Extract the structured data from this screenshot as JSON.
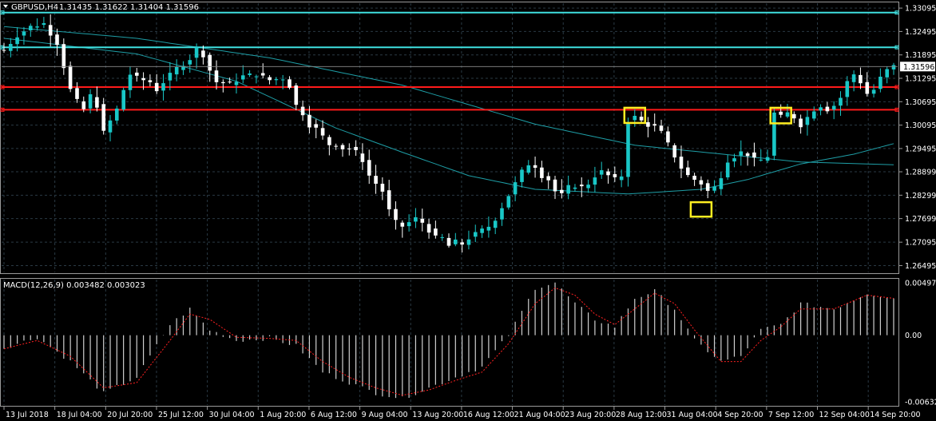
{
  "window": {
    "symbol_label": "GBPUSD,H4",
    "ohlc_label": "1.31435 1.31622 1.31404 1.31596",
    "indicator_label": "MACD(12,26,9) 0.003482 0.003023"
  },
  "colors": {
    "background": "#000000",
    "grid": "#2a3a44",
    "bull_candle": "#19c7c7",
    "bear_candle": "#ffffff",
    "hline_cyan": "#3fe0e0",
    "hline_red": "#ff1a1a",
    "ma_line": "#1e9ea6",
    "highlight_box": "#ffee22",
    "macd_hist": "#d0d0d0",
    "macd_signal": "#ff2020"
  },
  "price_axis": {
    "ticks": [
      "1.33095",
      "1.32495",
      "1.31895",
      "1.31295",
      "1.30695",
      "1.30095",
      "1.29495",
      "1.28899",
      "1.28299",
      "1.27699",
      "1.27095",
      "1.26495"
    ],
    "current_price": "1.31596"
  },
  "macd_axis": {
    "ticks": [
      "0.004977",
      "0.00",
      "-0.006325"
    ]
  },
  "time_axis": {
    "ticks": [
      "13 Jul 2018",
      "18 Jul 04:00",
      "20 Jul 20:00",
      "25 Jul 12:00",
      "30 Jul 04:00",
      "1 Aug 20:00",
      "6 Aug 12:00",
      "9 Aug 04:00",
      "13 Aug 20:00",
      "16 Aug 12:00",
      "21 Aug 04:00",
      "23 Aug 20:00",
      "28 Aug 12:00",
      "31 Aug 04:00",
      "4 Sep 20:00",
      "7 Sep 12:00",
      "12 Sep 04:00",
      "14 Sep 20:00"
    ]
  },
  "chart_data": {
    "type": "candlestick",
    "symbol": "GBPUSD",
    "timeframe": "H4",
    "ylim": [
      1.2632,
      1.3322
    ],
    "horizontal_lines": [
      {
        "price": 1.3298,
        "color": "cyan"
      },
      {
        "price": 1.3209,
        "color": "cyan"
      },
      {
        "price": 1.3107,
        "color": "red"
      },
      {
        "price": 1.3049,
        "color": "red"
      }
    ],
    "price_path": [
      [
        0,
        1.3202
      ],
      [
        2,
        1.324
      ],
      [
        4,
        1.3262
      ],
      [
        6,
        1.327
      ],
      [
        8,
        1.322
      ],
      [
        9,
        1.316
      ],
      [
        10,
        1.31
      ],
      [
        11,
        1.307
      ],
      [
        12,
        1.305
      ],
      [
        13,
        1.3085
      ],
      [
        14,
        1.306
      ],
      [
        15,
        1.299
      ],
      [
        16,
        1.302
      ],
      [
        17,
        1.305
      ],
      [
        18,
        1.31
      ],
      [
        19,
        1.314
      ],
      [
        20,
        1.313
      ],
      [
        22,
        1.312
      ],
      [
        23,
        1.31
      ],
      [
        24,
        1.312
      ],
      [
        26,
        1.3155
      ],
      [
        28,
        1.318
      ],
      [
        29,
        1.3205
      ],
      [
        30,
        1.319
      ],
      [
        31,
        1.315
      ],
      [
        32,
        1.312
      ],
      [
        34,
        1.3115
      ],
      [
        36,
        1.3135
      ],
      [
        38,
        1.314
      ],
      [
        40,
        1.3125
      ],
      [
        42,
        1.313
      ],
      [
        43,
        1.311
      ],
      [
        44,
        1.306
      ],
      [
        45,
        1.304
      ],
      [
        46,
        1.301
      ],
      [
        47,
        1.3
      ],
      [
        48,
        1.298
      ],
      [
        49,
        1.296
      ],
      [
        50,
        1.296
      ],
      [
        51,
        1.295
      ],
      [
        52,
        1.295
      ],
      [
        53,
        1.294
      ],
      [
        54,
        1.292
      ],
      [
        55,
        1.288
      ],
      [
        56,
        1.286
      ],
      [
        57,
        1.284
      ],
      [
        58,
        1.279
      ],
      [
        59,
        1.276
      ],
      [
        60,
        1.275
      ],
      [
        61,
        1.276
      ],
      [
        62,
        1.277
      ],
      [
        63,
        1.276
      ],
      [
        64,
        1.274
      ],
      [
        65,
        1.272
      ],
      [
        66,
        1.272
      ],
      [
        67,
        1.27
      ],
      [
        68,
        1.271
      ],
      [
        69,
        1.2705
      ],
      [
        70,
        1.272
      ],
      [
        71,
        1.273
      ],
      [
        72,
        1.274
      ],
      [
        73,
        1.275
      ],
      [
        74,
        1.277
      ],
      [
        75,
        1.28
      ],
      [
        76,
        1.283
      ],
      [
        77,
        1.286
      ],
      [
        78,
        1.289
      ],
      [
        79,
        1.291
      ],
      [
        80,
        1.2905
      ],
      [
        81,
        1.288
      ],
      [
        82,
        1.287
      ],
      [
        83,
        1.284
      ],
      [
        84,
        1.283
      ],
      [
        85,
        1.285
      ],
      [
        86,
        1.2855
      ],
      [
        87,
        1.285
      ],
      [
        88,
        1.286
      ],
      [
        89,
        1.288
      ],
      [
        90,
        1.289
      ],
      [
        91,
        1.288
      ],
      [
        92,
        1.287
      ],
      [
        93,
        1.288
      ],
      [
        94,
        1.302
      ],
      [
        95,
        1.303
      ],
      [
        96,
        1.302
      ],
      [
        97,
        1.301
      ],
      [
        98,
        1.3005
      ],
      [
        99,
        1.299
      ],
      [
        100,
        1.296
      ],
      [
        101,
        1.293
      ],
      [
        102,
        1.29
      ],
      [
        103,
        1.288
      ],
      [
        104,
        1.287
      ],
      [
        105,
        1.286
      ],
      [
        106,
        1.284
      ],
      [
        107,
        1.285
      ],
      [
        108,
        1.288
      ],
      [
        109,
        1.292
      ],
      [
        110,
        1.293
      ],
      [
        111,
        1.294
      ],
      [
        112,
        1.2935
      ],
      [
        113,
        1.292
      ],
      [
        114,
        1.292
      ],
      [
        115,
        1.293
      ],
      [
        116,
        1.304
      ],
      [
        117,
        1.303
      ],
      [
        118,
        1.304
      ],
      [
        119,
        1.303
      ],
      [
        120,
        1.301
      ],
      [
        121,
        1.303
      ],
      [
        122,
        1.305
      ],
      [
        123,
        1.306
      ],
      [
        124,
        1.305
      ],
      [
        125,
        1.306
      ],
      [
        126,
        1.308
      ],
      [
        127,
        1.312
      ],
      [
        128,
        1.314
      ],
      [
        129,
        1.312
      ],
      [
        130,
        1.309
      ],
      [
        131,
        1.31
      ],
      [
        132,
        1.313
      ],
      [
        133,
        1.315
      ],
      [
        134,
        1.316
      ]
    ],
    "moving_averages": [
      {
        "name": "",
        "points": [
          [
            0,
            1.3262
          ],
          [
            20,
            1.3232
          ],
          [
            40,
            1.3182
          ],
          [
            60,
            1.3112
          ],
          [
            80,
            1.3012
          ],
          [
            95,
            1.2958
          ],
          [
            110,
            1.2932
          ],
          [
            120,
            1.2915
          ],
          [
            134,
            1.2908
          ]
        ]
      },
      {
        "name": "",
        "points": [
          [
            0,
            1.3232
          ],
          [
            20,
            1.3192
          ],
          [
            35,
            1.3122
          ],
          [
            50,
            1.3002
          ],
          [
            60,
            1.294
          ],
          [
            70,
            1.288
          ],
          [
            80,
            1.2845
          ],
          [
            94,
            1.2833
          ],
          [
            105,
            1.2845
          ],
          [
            112,
            1.287
          ],
          [
            120,
            1.291
          ],
          [
            128,
            1.2935
          ],
          [
            134,
            1.2962
          ]
        ]
      }
    ],
    "macd_histogram_path": [
      [
        0,
        -0.0012
      ],
      [
        5,
        -0.0002
      ],
      [
        10,
        -0.0025
      ],
      [
        15,
        -0.0055
      ],
      [
        20,
        -0.004
      ],
      [
        25,
        0.001
      ],
      [
        28,
        0.0025
      ],
      [
        31,
        0.0005
      ],
      [
        35,
        -0.0005
      ],
      [
        40,
        -0.0003
      ],
      [
        44,
        -0.001
      ],
      [
        48,
        -0.0035
      ],
      [
        52,
        -0.0045
      ],
      [
        56,
        -0.0055
      ],
      [
        60,
        -0.006
      ],
      [
        64,
        -0.005
      ],
      [
        68,
        -0.004
      ],
      [
        72,
        -0.003
      ],
      [
        76,
        0.0
      ],
      [
        80,
        0.0045
      ],
      [
        83,
        0.005
      ],
      [
        86,
        0.003
      ],
      [
        89,
        0.0015
      ],
      [
        92,
        0.0008
      ],
      [
        95,
        0.0035
      ],
      [
        98,
        0.0042
      ],
      [
        101,
        0.0025
      ],
      [
        104,
        -0.0005
      ],
      [
        108,
        -0.0025
      ],
      [
        111,
        -0.002
      ],
      [
        114,
        0.0005
      ],
      [
        117,
        0.001
      ],
      [
        120,
        0.003
      ],
      [
        125,
        0.0025
      ],
      [
        130,
        0.004
      ],
      [
        134,
        0.0035
      ]
    ],
    "macd_signal_path": [
      [
        0,
        -0.0013
      ],
      [
        5,
        -0.0005
      ],
      [
        10,
        -0.002
      ],
      [
        15,
        -0.005
      ],
      [
        20,
        -0.0045
      ],
      [
        25,
        -0.0005
      ],
      [
        28,
        0.002
      ],
      [
        31,
        0.0015
      ],
      [
        35,
        -0.0002
      ],
      [
        40,
        -0.0003
      ],
      [
        44,
        -0.0005
      ],
      [
        48,
        -0.0025
      ],
      [
        52,
        -0.004
      ],
      [
        56,
        -0.005
      ],
      [
        60,
        -0.0057
      ],
      [
        64,
        -0.0052
      ],
      [
        68,
        -0.0043
      ],
      [
        72,
        -0.0035
      ],
      [
        76,
        -0.0008
      ],
      [
        80,
        0.003
      ],
      [
        83,
        0.0045
      ],
      [
        86,
        0.0038
      ],
      [
        89,
        0.002
      ],
      [
        92,
        0.001
      ],
      [
        95,
        0.0025
      ],
      [
        98,
        0.004
      ],
      [
        101,
        0.003
      ],
      [
        104,
        0.0005
      ],
      [
        108,
        -0.0025
      ],
      [
        111,
        -0.0025
      ],
      [
        114,
        -0.0005
      ],
      [
        117,
        0.0008
      ],
      [
        120,
        0.0025
      ],
      [
        125,
        0.0025
      ],
      [
        130,
        0.0038
      ],
      [
        134,
        0.0035
      ]
    ],
    "highlighted_bars": [
      {
        "center_bar": 95,
        "price_low": 1.3015,
        "price_high": 1.3054
      },
      {
        "center_bar": 105,
        "price_low": 1.2775,
        "price_high": 1.2812
      },
      {
        "center_bar": 117,
        "price_low": 1.3014,
        "price_high": 1.3054
      }
    ]
  }
}
